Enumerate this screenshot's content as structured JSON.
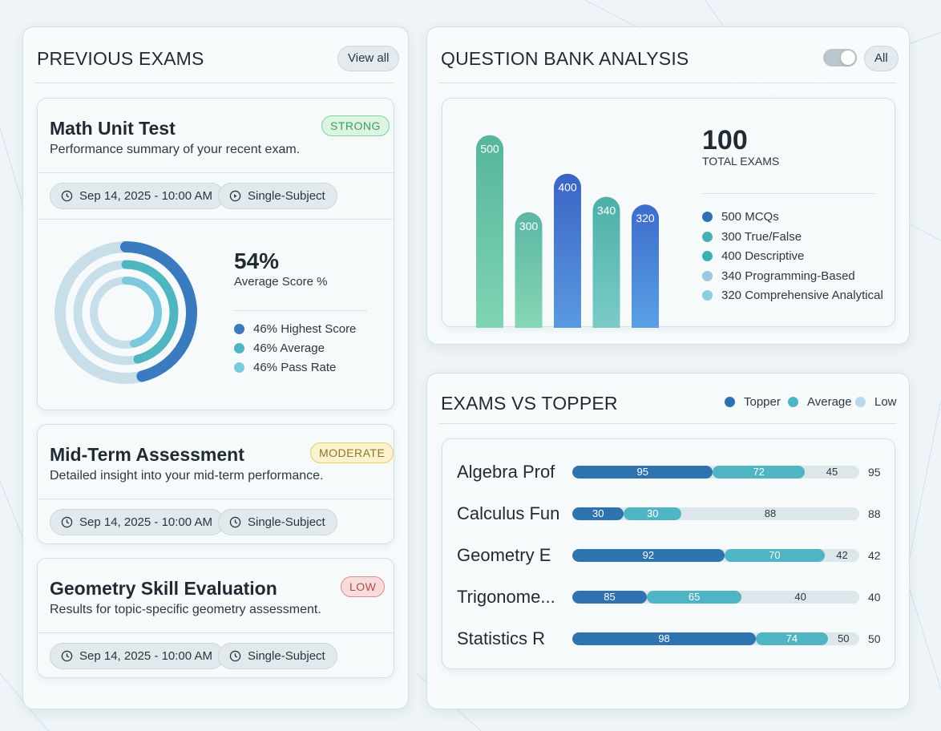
{
  "previous_exams": {
    "title": "PREVIOUS EXAMS",
    "view_all_label": "View all",
    "exams": [
      {
        "title": "Math Unit Test",
        "subtitle": "Performance summary of your recent exam.",
        "badge": "STRONG",
        "date": "Sep 14, 2025 - 10:00 AM",
        "type": "Single-Subject"
      },
      {
        "title": "Mid-Term Assessment",
        "subtitle": "Detailed insight into your mid-term performance.",
        "badge": "MODERATE",
        "date": "Sep 14, 2025 - 10:00 AM",
        "type": "Single-Subject"
      },
      {
        "title": "Geometry Skill Evaluation",
        "subtitle": "Results for topic-specific geometry assessment.",
        "badge": "LOW",
        "date": "Sep 14, 2025 - 10:00 AM",
        "type": "Single-Subject"
      }
    ],
    "score": {
      "value": "54%",
      "label": "Average Score %",
      "legend": [
        {
          "label": "46% Highest Score",
          "color": "#3a7bbf"
        },
        {
          "label": "46% Average",
          "color": "#4fb5bf"
        },
        {
          "label": "46% Pass Rate",
          "color": "#7cc8dc"
        }
      ],
      "rings": [
        {
          "name": "Highest Score",
          "value": 46,
          "color": "#3a7bbf"
        },
        {
          "name": "Average",
          "value": 46,
          "color": "#4fb5bf"
        },
        {
          "name": "Pass Rate",
          "value": 46,
          "color": "#7cc8dc"
        }
      ]
    }
  },
  "question_bank": {
    "title": "QUESTION BANK ANALYSIS",
    "filter_label": "All",
    "total_value": "100",
    "total_label": "TOTAL EXAMS",
    "legend": [
      {
        "label": "500 MCQs",
        "color": "#2f6fb5"
      },
      {
        "label": "300 True/False",
        "color": "#4aaeb4"
      },
      {
        "label": "400 Descriptive",
        "color": "#3ab0b0"
      },
      {
        "label": "340 Programming-Based",
        "color": "#9cc7e0"
      },
      {
        "label": "320 Comprehensive Analytical",
        "color": "#8ccde0"
      }
    ]
  },
  "exams_vs_topper": {
    "title": "EXAMS VS TOPPER",
    "legend": [
      {
        "label": "Topper",
        "color": "#2f72b0"
      },
      {
        "label": "Average",
        "color": "#4fb5c4"
      },
      {
        "label": "Low",
        "color": "#bcd8e8"
      }
    ]
  },
  "chart_data": [
    {
      "type": "bar",
      "categories": [
        "MCQs",
        "True/False",
        "Descriptive",
        "Programming-Based",
        "Comprehensive Analytical"
      ],
      "values": [
        500,
        300,
        400,
        340,
        320
      ],
      "ylim": [
        0,
        520
      ]
    },
    {
      "type": "bar",
      "orientation": "horizontal",
      "stacked": true,
      "categories": [
        "Algebra Prof",
        "Calculus Fun",
        "Geometry E",
        "Trigonome...",
        "Statistics R"
      ],
      "series": [
        {
          "name": "Topper",
          "values": [
            95,
            30,
            92,
            85,
            98
          ]
        },
        {
          "name": "Average",
          "values": [
            72,
            30,
            70,
            65,
            74
          ]
        },
        {
          "name": "Low",
          "values": [
            45,
            88,
            42,
            40,
            50
          ]
        }
      ],
      "row_totals": [
        95,
        88,
        42,
        40,
        50
      ],
      "segment_widths": [
        [
          0.49,
          0.32,
          0.19
        ],
        [
          0.18,
          0.2,
          0.62
        ],
        [
          0.53,
          0.35,
          0.12
        ],
        [
          0.26,
          0.33,
          0.41
        ],
        [
          0.64,
          0.25,
          0.11
        ]
      ]
    }
  ]
}
